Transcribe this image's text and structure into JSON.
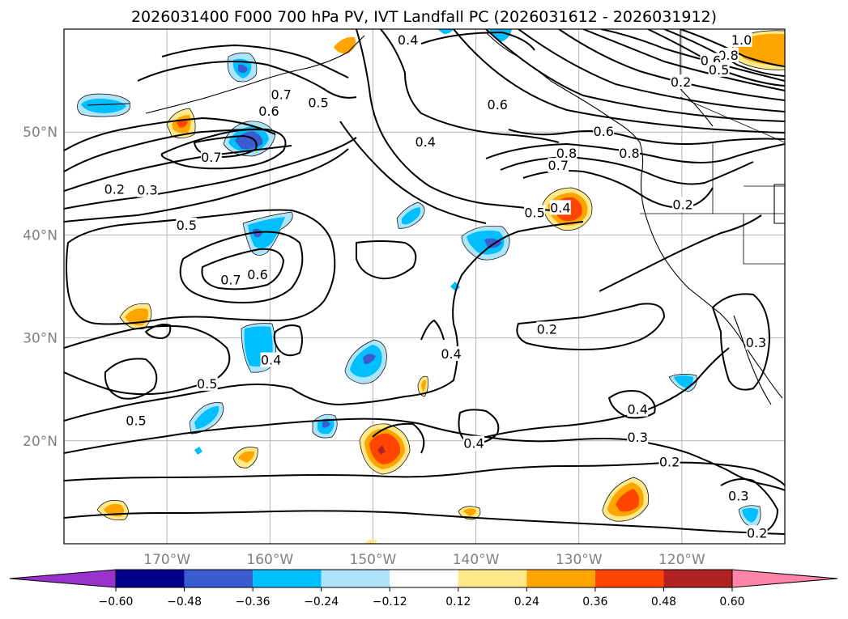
{
  "title": "2026031400 F000 700 hPa PV, IVT Landfall PC (2026031612 - 2026031912)",
  "lat_ticks": [
    {
      "label": "50°N",
      "lat": 50
    },
    {
      "label": "40°N",
      "lat": 40
    },
    {
      "label": "30°N",
      "lat": 30
    },
    {
      "label": "20°N",
      "lat": 20
    }
  ],
  "lon_ticks": [
    {
      "label": "170°W",
      "lon": -170
    },
    {
      "label": "160°W",
      "lon": -160
    },
    {
      "label": "150°W",
      "lon": -150
    },
    {
      "label": "140°W",
      "lon": -140
    },
    {
      "label": "130°W",
      "lon": -130
    },
    {
      "label": "120°W",
      "lon": -120
    }
  ],
  "extent": {
    "lon_min": -180,
    "lon_max": -110,
    "lat_min": 10,
    "lat_max": 60
  },
  "colorbar": {
    "colors": [
      "#9932cc",
      "#00008b",
      "#3b5bd0",
      "#00bfff",
      "#aee4fa",
      "#ffffff",
      "#ffe98a",
      "#ffa500",
      "#ff4500",
      "#b22222",
      "#ff85a8"
    ],
    "labels": [
      "−0.60",
      "−0.48",
      "−0.36",
      "−0.24",
      "−0.12",
      "0.12",
      "0.24",
      "0.36",
      "0.48",
      "0.60"
    ]
  },
  "contour_labels": [
    {
      "text": "0.4",
      "lon": -146.6,
      "lat": 58.9
    },
    {
      "text": "1.0",
      "lon": -114.2,
      "lat": 58.9
    },
    {
      "text": "0.8",
      "lon": -115.5,
      "lat": 57.4
    },
    {
      "text": "0.6",
      "lon": -117.2,
      "lat": 56.9
    },
    {
      "text": "0.5",
      "lon": -116.4,
      "lat": 56.0
    },
    {
      "text": "0.2",
      "lon": -120.1,
      "lat": 54.8
    },
    {
      "text": "0.7",
      "lon": -158.9,
      "lat": 53.6
    },
    {
      "text": "0.6",
      "lon": -160.1,
      "lat": 52.0
    },
    {
      "text": "0.5",
      "lon": -155.3,
      "lat": 52.8
    },
    {
      "text": "0.6",
      "lon": -137.9,
      "lat": 52.6
    },
    {
      "text": "0.4",
      "lon": -144.9,
      "lat": 49.0
    },
    {
      "text": "0.6",
      "lon": -127.6,
      "lat": 50.0
    },
    {
      "text": "0.8",
      "lon": -131.2,
      "lat": 47.9
    },
    {
      "text": "0.7",
      "lon": -132.0,
      "lat": 46.7
    },
    {
      "text": "0.8",
      "lon": -125.1,
      "lat": 47.9
    },
    {
      "text": "0.7",
      "lon": -165.7,
      "lat": 47.5
    },
    {
      "text": "0.2",
      "lon": -175.1,
      "lat": 44.4
    },
    {
      "text": "0.3",
      "lon": -171.9,
      "lat": 44.3
    },
    {
      "text": "0.5",
      "lon": -134.3,
      "lat": 42.1
    },
    {
      "text": "0.4",
      "lon": -131.8,
      "lat": 42.6
    },
    {
      "text": "0.2",
      "lon": -119.9,
      "lat": 42.9
    },
    {
      "text": "0.5",
      "lon": -168.1,
      "lat": 40.9
    },
    {
      "text": "0.7",
      "lon": -163.8,
      "lat": 35.6
    },
    {
      "text": "0.6",
      "lon": -161.2,
      "lat": 36.1
    },
    {
      "text": "0.2",
      "lon": -133.1,
      "lat": 30.8
    },
    {
      "text": "0.4",
      "lon": -159.9,
      "lat": 27.8
    },
    {
      "text": "0.4",
      "lon": -142.4,
      "lat": 28.4
    },
    {
      "text": "0.3",
      "lon": -112.8,
      "lat": 29.5
    },
    {
      "text": "0.5",
      "lon": -166.1,
      "lat": 25.5
    },
    {
      "text": "0.4",
      "lon": -124.3,
      "lat": 23.0
    },
    {
      "text": "0.5",
      "lon": -173.0,
      "lat": 21.9
    },
    {
      "text": "0.3",
      "lon": -124.3,
      "lat": 20.3
    },
    {
      "text": "0.4",
      "lon": -140.2,
      "lat": 19.7
    },
    {
      "text": "0.2",
      "lon": -121.2,
      "lat": 17.9
    },
    {
      "text": "0.3",
      "lon": -114.5,
      "lat": 14.6
    },
    {
      "text": "0.2",
      "lon": -112.7,
      "lat": 11.0
    }
  ]
}
